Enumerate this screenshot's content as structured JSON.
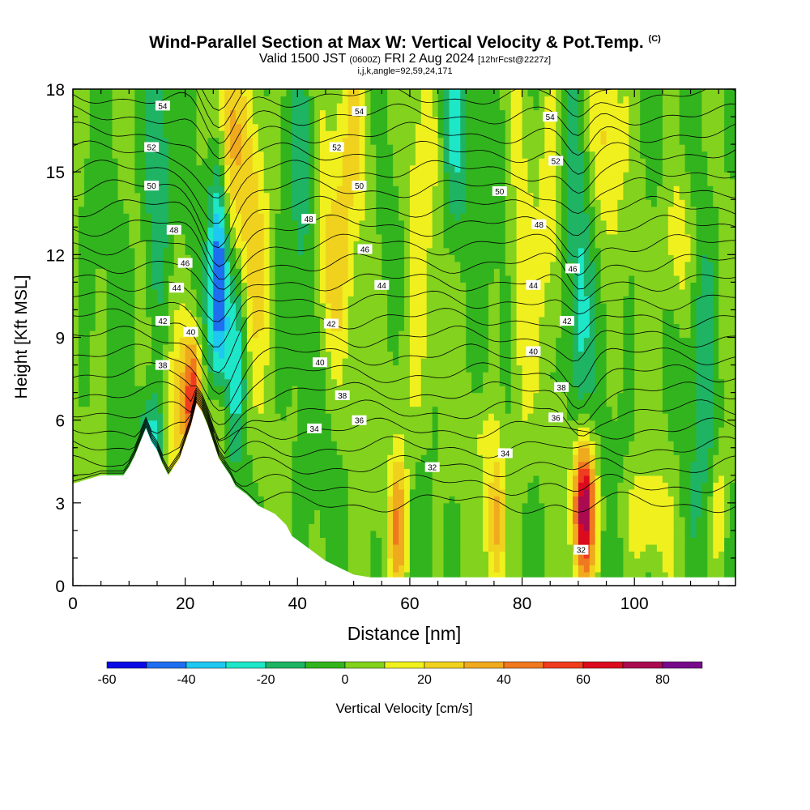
{
  "header": {
    "title": "Wind-Parallel Section at Max W: Vertical Velocity & Pot.Temp.",
    "title_mark": "(C)",
    "valid_prefix": "Valid 1500 JST",
    "valid_utc": "(0600Z)",
    "valid_date": "FRI 2 Aug 2024",
    "forecast": "[12hrFcst@2227z]",
    "params": "i,j,k,angle=92,59,24,171"
  },
  "chart_data": {
    "type": "heatmap",
    "xlabel": "Distance [nm]",
    "ylabel": "Height [Kft MSL]",
    "xlim": [
      0,
      118
    ],
    "ylim": [
      0,
      18
    ],
    "x_ticks": [
      0,
      20,
      40,
      60,
      80,
      100
    ],
    "y_ticks": [
      0,
      3,
      6,
      9,
      12,
      15,
      18
    ],
    "colorbar": {
      "label": "Vertical Velocity [cm/s]",
      "tick_labels": [
        "-60",
        "-40",
        "-20",
        "0",
        "20",
        "40",
        "60",
        "80"
      ],
      "tick_values": [
        -60,
        -40,
        -20,
        0,
        20,
        40,
        60,
        80
      ],
      "levels": [
        -60,
        -50,
        -40,
        -30,
        -20,
        -10,
        0,
        10,
        20,
        30,
        40,
        50,
        60,
        70,
        80,
        90
      ],
      "colors": [
        "#0a0ae6",
        "#1e6ef0",
        "#1ec8f0",
        "#1ee6c8",
        "#1eb464",
        "#32b41e",
        "#82d21e",
        "#f0f01e",
        "#f0d21e",
        "#f0aa1e",
        "#f0781e",
        "#f03c1e",
        "#dc0a1e",
        "#aa0a50",
        "#780a8c"
      ]
    },
    "terrain_kft": [
      [
        0,
        3.7
      ],
      [
        5,
        4.0
      ],
      [
        9,
        4.0
      ],
      [
        10,
        4.3
      ],
      [
        11,
        4.7
      ],
      [
        12,
        5.2
      ],
      [
        13,
        5.7
      ],
      [
        14,
        5.2
      ],
      [
        15,
        4.9
      ],
      [
        16,
        4.4
      ],
      [
        17,
        4.0
      ],
      [
        19,
        4.6
      ],
      [
        21,
        5.8
      ],
      [
        22,
        6.6
      ],
      [
        23,
        6.3
      ],
      [
        24,
        5.8
      ],
      [
        25,
        5.2
      ],
      [
        26,
        4.6
      ],
      [
        27,
        4.3
      ],
      [
        28,
        4.0
      ],
      [
        29,
        3.6
      ],
      [
        31,
        3.3
      ],
      [
        33,
        2.9
      ],
      [
        36,
        2.6
      ],
      [
        38,
        2.2
      ],
      [
        39,
        1.8
      ],
      [
        41,
        1.5
      ],
      [
        43,
        1.2
      ],
      [
        45,
        0.9
      ],
      [
        48,
        0.6
      ],
      [
        50,
        0.4
      ],
      [
        53,
        0.3
      ],
      [
        60,
        0.3
      ],
      [
        118,
        0.3
      ]
    ],
    "velocity_features": [
      {
        "x": 26,
        "y": 11.2,
        "wx": 1.2,
        "wy": 3.0,
        "w": -55
      },
      {
        "x": 15,
        "y": 15,
        "wx": 1.5,
        "wy": 3.5,
        "w": -25
      },
      {
        "x": 29,
        "y": 8.2,
        "wx": 1.3,
        "wy": 2.5,
        "w": -25
      },
      {
        "x": 14,
        "y": 5.3,
        "wx": 1.5,
        "wy": 1.2,
        "w": -25
      },
      {
        "x": 90,
        "y": 9.8,
        "wx": 1.5,
        "wy": 4.0,
        "w": -22
      },
      {
        "x": 68,
        "y": 16.5,
        "wx": 2.0,
        "wy": 3.0,
        "w": -20
      },
      {
        "x": 41,
        "y": 14,
        "wx": 1.5,
        "wy": 5.0,
        "w": -12
      },
      {
        "x": 112,
        "y": 9,
        "wx": 2.0,
        "wy": 6.0,
        "w": -12
      },
      {
        "x": 91,
        "y": 2.8,
        "wx": 1.4,
        "wy": 1.8,
        "w": 82
      },
      {
        "x": 21.5,
        "y": 7,
        "wx": 1.0,
        "wy": 1.5,
        "w": 45
      },
      {
        "x": 20,
        "y": 6.3,
        "wx": 2.2,
        "wy": 2.2,
        "w": 22
      },
      {
        "x": 27.5,
        "y": 16,
        "wx": 1.8,
        "wy": 2.5,
        "w": 28
      },
      {
        "x": 32,
        "y": 13,
        "wx": 2.0,
        "wy": 3.5,
        "w": 24
      },
      {
        "x": 26,
        "y": 6,
        "wx": 1.2,
        "wy": 1.2,
        "w": 22
      },
      {
        "x": 58,
        "y": 2.3,
        "wx": 1.2,
        "wy": 1.8,
        "w": 40
      },
      {
        "x": 75.5,
        "y": 2.3,
        "wx": 1.2,
        "wy": 1.8,
        "w": 38
      },
      {
        "x": 46,
        "y": 11.5,
        "wx": 2.5,
        "wy": 2.5,
        "w": 22
      },
      {
        "x": 50,
        "y": 16.5,
        "wx": 2.5,
        "wy": 2.5,
        "w": 20
      },
      {
        "x": 62,
        "y": 14.5,
        "wx": 2.0,
        "wy": 3.0,
        "w": 16
      },
      {
        "x": 80,
        "y": 10,
        "wx": 1.5,
        "wy": 4.0,
        "w": 18
      },
      {
        "x": 85,
        "y": 14,
        "wx": 1.5,
        "wy": 3.0,
        "w": 16
      },
      {
        "x": 95,
        "y": 16,
        "wx": 2.0,
        "wy": 2.5,
        "w": 20
      },
      {
        "x": 108,
        "y": 12.5,
        "wx": 2.0,
        "wy": 2.0,
        "w": 22
      },
      {
        "x": 102,
        "y": 2.5,
        "wx": 3.0,
        "wy": 1.2,
        "w": 18
      },
      {
        "x": 115,
        "y": 2.5,
        "wx": 1.0,
        "wy": 1.5,
        "w": 25
      },
      {
        "x": 73,
        "y": 5.5,
        "wx": 3.0,
        "wy": 1.0,
        "w": 10
      },
      {
        "x": 60,
        "y": 7.5,
        "wx": 3.0,
        "wy": 2.0,
        "w": 12
      }
    ],
    "theta_contours": {
      "levels": [
        31,
        32,
        33,
        34,
        35,
        36,
        37,
        38,
        39,
        40,
        41,
        42,
        43,
        44,
        45,
        46,
        47,
        48,
        49,
        50,
        51,
        52,
        53,
        54,
        55
      ],
      "base_height_kft": 3.0,
      "spacing_kft": 0.67
    },
    "contour_labels": [
      {
        "text": "54",
        "x": 16,
        "y": 17.4
      },
      {
        "text": "52",
        "x": 14,
        "y": 15.9
      },
      {
        "text": "50",
        "x": 14,
        "y": 14.5
      },
      {
        "text": "48",
        "x": 18,
        "y": 12.9
      },
      {
        "text": "46",
        "x": 20,
        "y": 11.7
      },
      {
        "text": "44",
        "x": 18.5,
        "y": 10.8
      },
      {
        "text": "42",
        "x": 16,
        "y": 9.6
      },
      {
        "text": "40",
        "x": 21,
        "y": 9.2
      },
      {
        "text": "38",
        "x": 16,
        "y": 8.0
      },
      {
        "text": "48",
        "x": 42,
        "y": 13.3
      },
      {
        "text": "46",
        "x": 52,
        "y": 12.2
      },
      {
        "text": "44",
        "x": 55,
        "y": 10.9
      },
      {
        "text": "42",
        "x": 46,
        "y": 9.5
      },
      {
        "text": "40",
        "x": 44,
        "y": 8.1
      },
      {
        "text": "38",
        "x": 48,
        "y": 6.9
      },
      {
        "text": "36",
        "x": 51,
        "y": 6.0
      },
      {
        "text": "34",
        "x": 43,
        "y": 5.7
      },
      {
        "text": "32",
        "x": 64,
        "y": 4.3
      },
      {
        "text": "34",
        "x": 77,
        "y": 4.8
      },
      {
        "text": "54",
        "x": 51,
        "y": 17.2
      },
      {
        "text": "52",
        "x": 47,
        "y": 15.9
      },
      {
        "text": "50",
        "x": 51,
        "y": 14.5
      },
      {
        "text": "50",
        "x": 76,
        "y": 14.3
      },
      {
        "text": "54",
        "x": 85,
        "y": 17.0
      },
      {
        "text": "52",
        "x": 86,
        "y": 15.4
      },
      {
        "text": "48",
        "x": 83,
        "y": 13.1
      },
      {
        "text": "46",
        "x": 89,
        "y": 11.5
      },
      {
        "text": "44",
        "x": 82,
        "y": 10.9
      },
      {
        "text": "42",
        "x": 88,
        "y": 9.6
      },
      {
        "text": "40",
        "x": 82,
        "y": 8.5
      },
      {
        "text": "38",
        "x": 87,
        "y": 7.2
      },
      {
        "text": "36",
        "x": 86,
        "y": 6.1
      },
      {
        "text": "32",
        "x": 90.5,
        "y": 1.3
      }
    ]
  }
}
